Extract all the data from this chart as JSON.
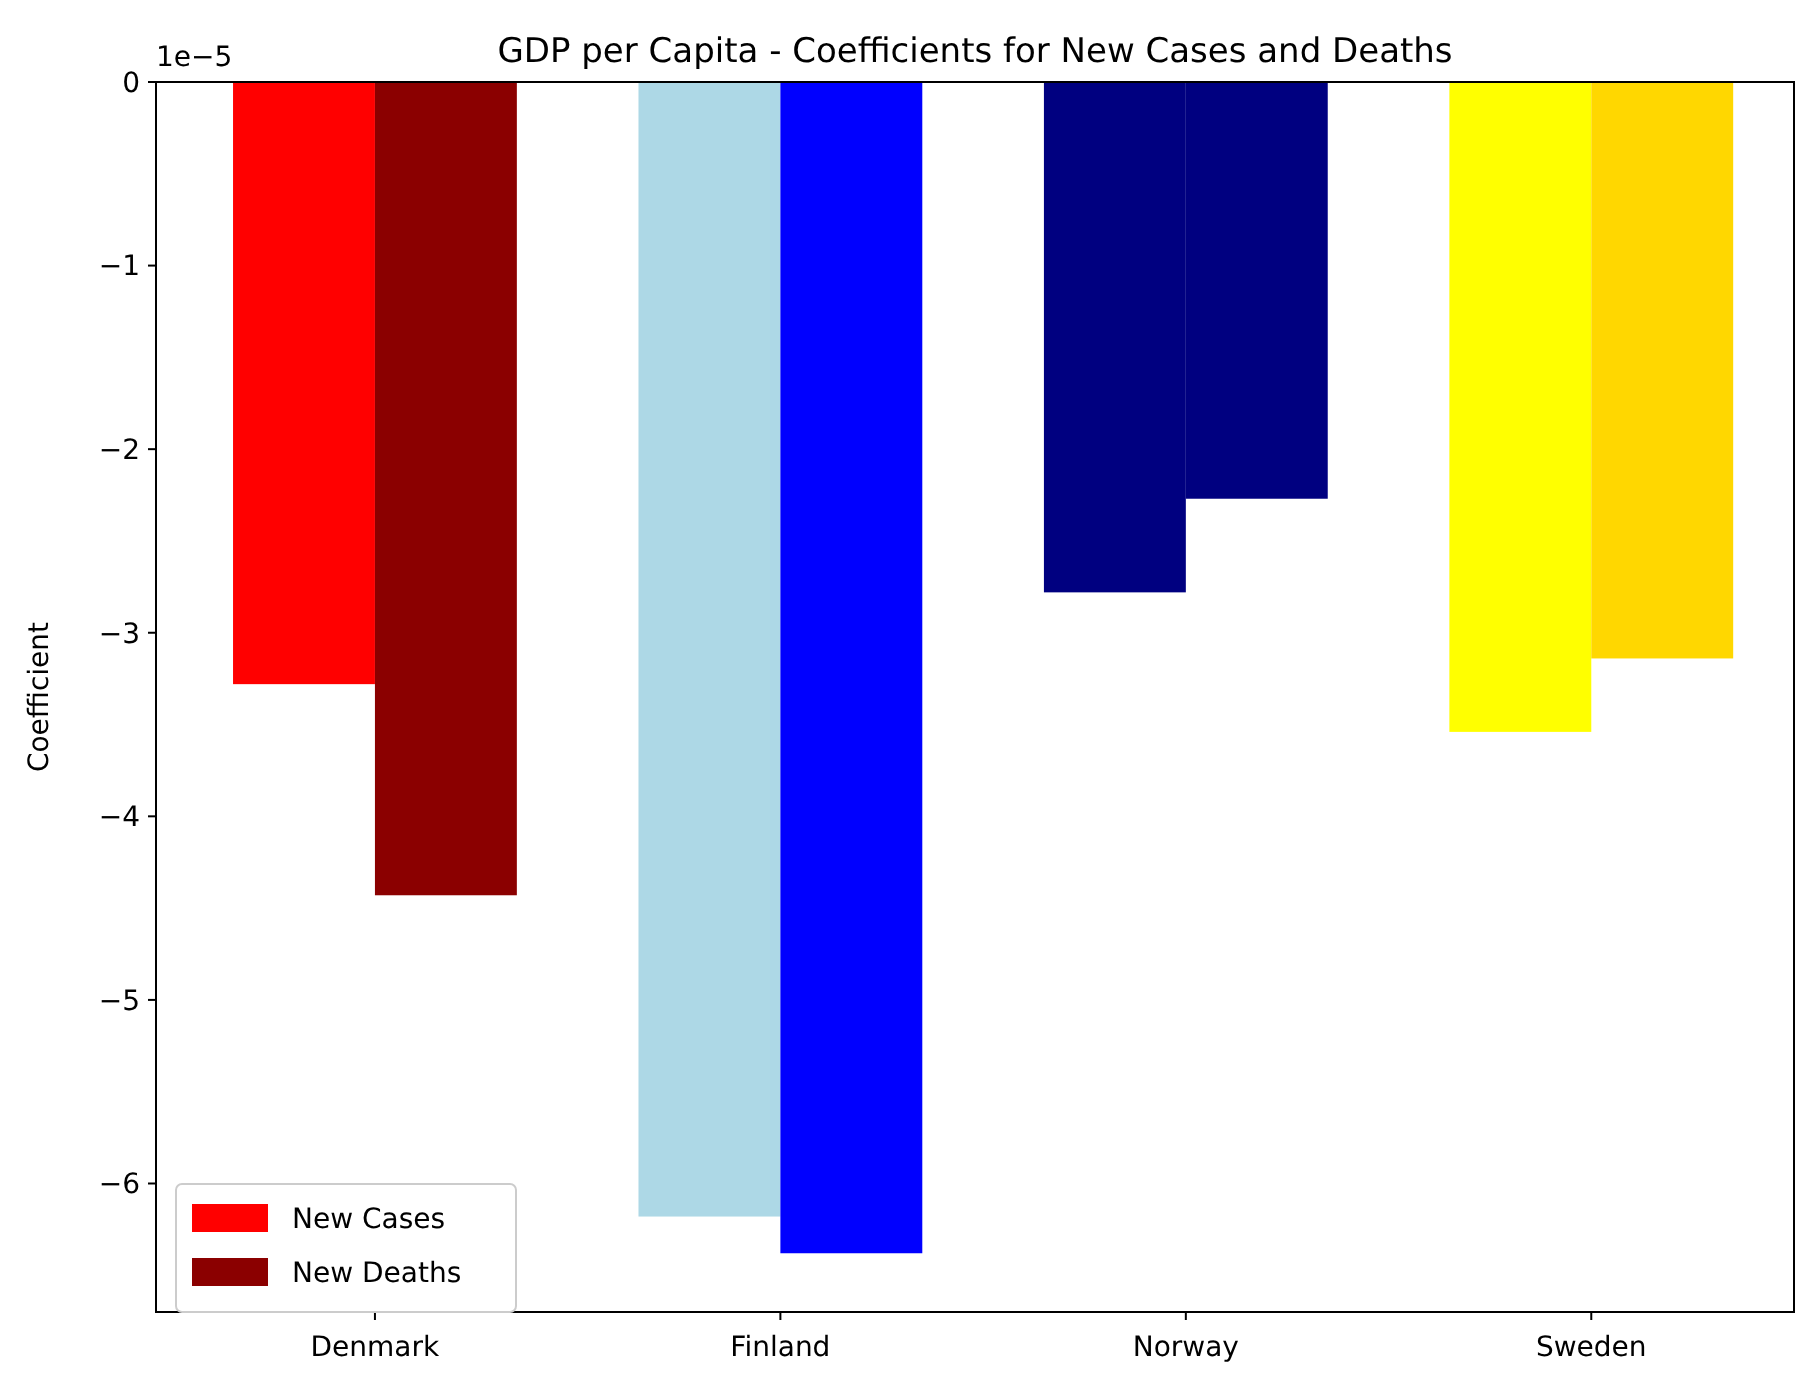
{
  "chart_data": {
    "type": "bar",
    "title": "GDP per Capita - Coefficients for New Cases and Deaths",
    "ylabel": "Coefficient",
    "categories": [
      "Denmark",
      "Finland",
      "Norway",
      "Sweden"
    ],
    "series": [
      {
        "name": "New Cases",
        "color": "#ff0000",
        "colors": [
          "#ff0000",
          "#add8e6",
          "#000080",
          "#ffff00"
        ],
        "values": [
          -3.28,
          -6.18,
          -2.78,
          -3.54
        ]
      },
      {
        "name": "New Deaths",
        "color": "#8b0000",
        "colors": [
          "#8b0000",
          "#0000ff",
          "#000080",
          "#ffd700"
        ],
        "values": [
          -4.43,
          -6.38,
          -2.27,
          -3.14
        ]
      }
    ],
    "ylim": [
      -6.7,
      0
    ],
    "yticks": [
      -6,
      -5,
      -4,
      -3,
      -2,
      -1,
      0
    ],
    "annotations": [
      "1e−5"
    ],
    "legend": "bottom left",
    "grid": false
  }
}
